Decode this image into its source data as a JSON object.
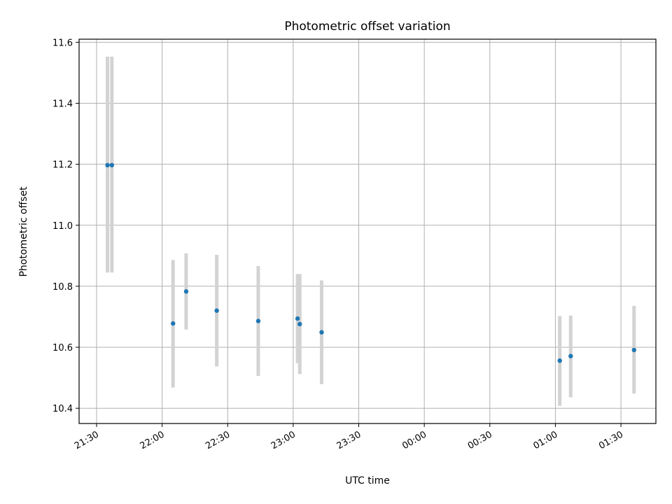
{
  "chart_data": {
    "type": "scatter",
    "title": "Photometric offset variation",
    "xlabel": "UTC time",
    "ylabel": "Photometric offset",
    "grid": true,
    "x_ticks": [
      "21:30",
      "22:00",
      "22:30",
      "23:00",
      "23:30",
      "00:00",
      "00:30",
      "01:00",
      "01:30"
    ],
    "y_ticks": [
      "10.4",
      "10.6",
      "10.8",
      "11.0",
      "11.2",
      "11.4",
      "11.6"
    ],
    "ylim": [
      10.35,
      11.61
    ],
    "xlim": [
      "21:22",
      "01:46"
    ],
    "point_color": "#1f77b4",
    "errorbar_color": "#d3d3d3",
    "series": [
      {
        "points": [
          {
            "time": "21:35",
            "value": 11.197,
            "low": 10.845,
            "high": 11.553
          },
          {
            "time": "21:37",
            "value": 11.197,
            "low": 10.845,
            "high": 11.553
          },
          {
            "time": "22:05",
            "value": 10.678,
            "low": 10.468,
            "high": 10.886
          },
          {
            "time": "22:11",
            "value": 10.783,
            "low": 10.658,
            "high": 10.908
          },
          {
            "time": "22:25",
            "value": 10.72,
            "low": 10.537,
            "high": 10.903
          },
          {
            "time": "22:44",
            "value": 10.686,
            "low": 10.506,
            "high": 10.866
          },
          {
            "time": "23:02",
            "value": 10.694,
            "low": 10.548,
            "high": 10.84
          },
          {
            "time": "23:03",
            "value": 10.676,
            "low": 10.512,
            "high": 10.84
          },
          {
            "time": "23:13",
            "value": 10.649,
            "low": 10.479,
            "high": 10.819
          },
          {
            "time": "01:02",
            "value": 10.556,
            "low": 10.408,
            "high": 10.702
          },
          {
            "time": "01:07",
            "value": 10.571,
            "low": 10.436,
            "high": 10.704
          },
          {
            "time": "01:36",
            "value": 10.591,
            "low": 10.448,
            "high": 10.736
          }
        ]
      }
    ]
  }
}
